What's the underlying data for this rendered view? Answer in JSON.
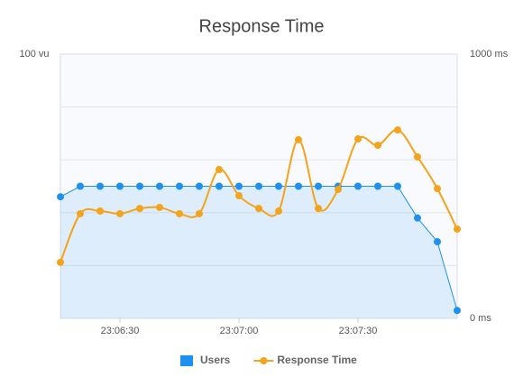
{
  "chart_data": {
    "type": "line",
    "title": "Response Time",
    "x": [
      "23:06:15",
      "23:06:20",
      "23:06:25",
      "23:06:30",
      "23:06:35",
      "23:06:40",
      "23:06:45",
      "23:06:50",
      "23:06:55",
      "23:07:00",
      "23:07:05",
      "23:07:10",
      "23:07:15",
      "23:07:20",
      "23:07:25",
      "23:07:30",
      "23:07:35",
      "23:07:40",
      "23:07:45",
      "23:07:50",
      "23:07:55"
    ],
    "xlim": [
      "23:06:15",
      "23:07:55"
    ],
    "xticks": [
      "23:06:30",
      "23:07:00",
      "23:07:30"
    ],
    "ylim": [
      0,
      100
    ],
    "yticks": [
      {
        "value": 100,
        "label": "100 vu"
      }
    ],
    "ygrid": [
      20,
      40,
      60,
      80
    ],
    "y2lim": [
      0,
      1000
    ],
    "y2ticks": [
      {
        "value": 0,
        "label": "0 ms"
      },
      {
        "value": 1000,
        "label": "1000 ms"
      }
    ],
    "series": [
      {
        "name": "Users",
        "color": "#1e90f0",
        "area": true,
        "values": [
          46,
          50,
          50,
          50,
          50,
          50,
          50,
          50,
          50,
          50,
          50,
          50,
          50,
          50,
          50,
          50,
          50,
          50,
          38,
          29,
          3
        ]
      },
      {
        "name": "Response Time",
        "color": "#f5a31a",
        "axis": "y2",
        "smooth": true,
        "values": [
          212,
          396,
          406,
          396,
          416,
          420,
          396,
          396,
          563,
          464,
          416,
          406,
          676,
          416,
          488,
          679,
          655,
          713,
          611,
          491,
          338
        ]
      }
    ],
    "legend": "bottom"
  }
}
